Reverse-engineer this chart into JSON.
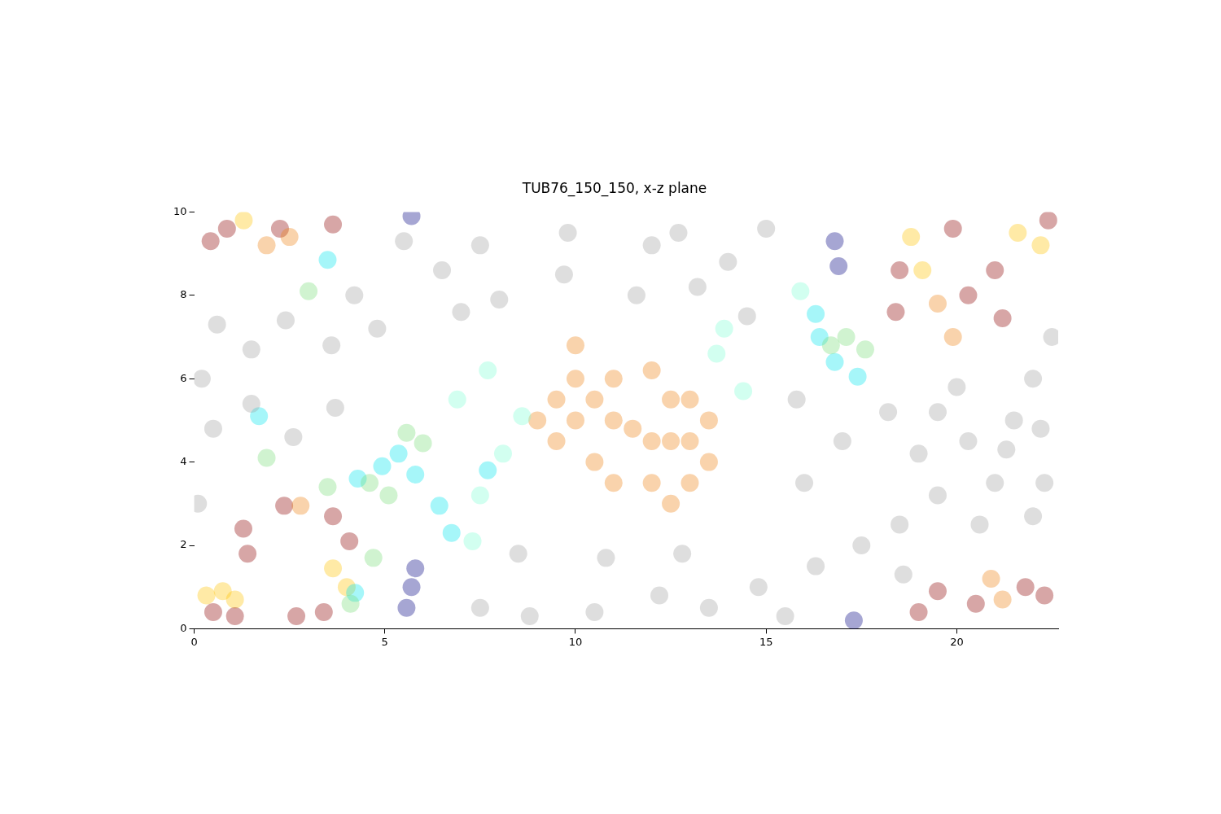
{
  "chart_data": {
    "type": "scatter",
    "title": "TUB76_150_150, x-z plane",
    "xlim": [
      0,
      22.66
    ],
    "ylim": [
      0,
      10
    ],
    "xticks": [
      0,
      5,
      10,
      15,
      20
    ],
    "yticks": [
      0,
      2,
      4,
      6,
      8,
      10
    ],
    "grid": false,
    "legend": false,
    "marker": "circle",
    "series": [
      {
        "color": "#a0a0a0",
        "x": [
          0.6,
          0.5,
          1.5,
          1.5,
          2.4,
          2.6,
          3.6,
          3.7,
          4.2,
          4.8,
          0.1,
          0.2,
          5.5,
          7.5,
          7,
          8,
          9.7,
          9.8,
          11.6,
          12,
          12.7,
          14,
          15,
          14.5,
          13.2,
          6.5,
          7.5,
          8.5,
          8.8,
          10.5,
          10.8,
          12.2,
          12.8,
          13.5,
          14.8,
          15.5,
          16.3,
          17.5,
          16,
          15.8,
          17,
          18.2,
          18.5,
          18.6,
          19,
          19.5,
          19.5,
          20.3,
          20.6,
          21,
          21.5,
          22,
          22.2,
          22.3,
          22,
          21.3,
          20,
          22.5
        ],
        "values": [
          7.3,
          4.8,
          6.7,
          5.4,
          7.4,
          4.6,
          6.8,
          5.3,
          8,
          7.2,
          3,
          6,
          9.3,
          9.2,
          7.6,
          7.9,
          8.5,
          9.5,
          8,
          9.2,
          9.5,
          8.8,
          9.6,
          7.5,
          8.2,
          8.6,
          0.5,
          1.8,
          0.3,
          0.4,
          1.7,
          0.8,
          1.8,
          0.5,
          1,
          0.3,
          1.5,
          2,
          3.5,
          5.5,
          4.5,
          5.2,
          2.5,
          1.3,
          4.2,
          5.2,
          3.2,
          4.5,
          2.5,
          3.5,
          5,
          6,
          4.8,
          3.5,
          2.7,
          4.3,
          5.8,
          7
        ]
      },
      {
        "color": "#7fffd4",
        "x": [
          7.5,
          8.1,
          8.6,
          7.7,
          13.7,
          14.4,
          13.9,
          6.9,
          15.9,
          7.3
        ],
        "values": [
          3.2,
          4.2,
          5.1,
          6.2,
          6.6,
          5.7,
          7.2,
          5.5,
          8.1,
          2.1
        ]
      },
      {
        "color": "#77dd77",
        "x": [
          5.57,
          5.1,
          4.6,
          6,
          17.1,
          17.6,
          16.7,
          3,
          3.5,
          4.7,
          4.1,
          1.9
        ],
        "values": [
          4.7,
          3.2,
          3.5,
          4.45,
          7,
          6.7,
          6.8,
          8.1,
          3.4,
          1.7,
          0.6,
          4.1
        ]
      },
      {
        "color": "#00e5ee",
        "x": [
          4.93,
          5.8,
          6.43,
          6.75,
          4.29,
          5.36,
          16.4,
          16.8,
          16.3,
          17.4,
          3.5,
          1.7,
          4.22,
          7.7
        ],
        "values": [
          3.9,
          3.7,
          2.95,
          2.3,
          3.6,
          4.2,
          7,
          6.4,
          7.55,
          6.05,
          8.85,
          5.1,
          0.86,
          3.8
        ]
      },
      {
        "color": "#ee8010",
        "x": [
          9.5,
          10,
          10.5,
          11,
          9.5,
          10,
          11,
          11.5,
          12,
          12.5,
          13,
          13,
          12.5,
          13,
          12,
          13.5,
          12,
          10.5,
          9,
          10,
          11,
          12.5,
          13.5,
          2.79,
          19.9,
          19.5,
          20.9,
          21.2,
          1.9,
          2.5
        ],
        "values": [
          5.5,
          5,
          5.5,
          5,
          4.5,
          6,
          6,
          4.8,
          4.5,
          4.5,
          4.5,
          3.5,
          5.5,
          5.5,
          3.5,
          4,
          6.2,
          4,
          5,
          6.8,
          3.5,
          3,
          5,
          2.95,
          7,
          7.8,
          1.2,
          0.7,
          9.2,
          9.4
        ]
      },
      {
        "color": "#8b0000",
        "x": [
          0.43,
          0.86,
          2.25,
          3.64,
          1.29,
          1.4,
          0.5,
          1.07,
          2.68,
          3.4,
          4.07,
          3.64,
          2.36,
          18.4,
          18.5,
          19.9,
          20.3,
          21,
          21.2,
          19.5,
          20.5,
          19,
          22.3,
          22.4,
          21.8
        ],
        "values": [
          9.3,
          9.6,
          9.6,
          9.7,
          2.4,
          1.8,
          0.4,
          0.3,
          0.3,
          0.4,
          2.1,
          2.7,
          2.95,
          7.6,
          8.6,
          9.6,
          8,
          8.6,
          7.45,
          0.9,
          0.6,
          0.4,
          0.8,
          9.8,
          1
        ]
      },
      {
        "color": "#ffc400",
        "x": [
          0.75,
          1.07,
          0.32,
          3.64,
          4,
          18.8,
          19.1,
          21.6,
          22.2,
          1.3
        ],
        "values": [
          0.9,
          0.7,
          0.8,
          1.45,
          1,
          9.4,
          8.6,
          9.5,
          9.2,
          9.8
        ]
      },
      {
        "color": "#000080",
        "x": [
          5.7,
          5.8,
          5.57,
          16.9,
          16.8,
          17.3,
          5.7
        ],
        "values": [
          1,
          1.45,
          0.5,
          8.7,
          9.3,
          0.2,
          9.9
        ]
      }
    ]
  }
}
